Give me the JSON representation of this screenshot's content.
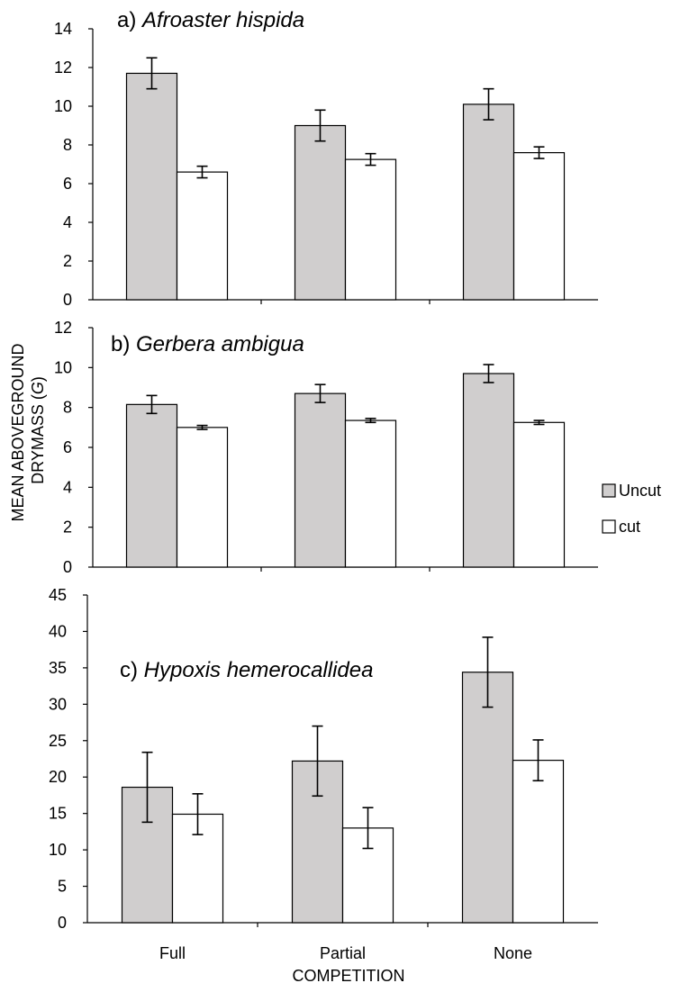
{
  "chart_data": {
    "type": "bar",
    "ylabel_line1": "MEAN ABOVEGROUND",
    "ylabel_line2_prefix": "DRYMASS (",
    "ylabel_line2_unit": "G",
    "ylabel_line2_suffix": ")",
    "xlabel": "COMPETITION",
    "categories": [
      "Full",
      "Partial",
      "None"
    ],
    "legend": {
      "placement": "right",
      "entries": [
        {
          "label": "Uncut",
          "color": "#d0cece"
        },
        {
          "label": "cut",
          "color": "#ffffff"
        }
      ]
    },
    "panels": [
      {
        "prefix": "a) ",
        "species": "Afroaster hispida",
        "ylim": [
          0,
          14
        ],
        "yticks": [
          "0",
          "2",
          "4",
          "6",
          "8",
          "10",
          "12",
          "14"
        ],
        "series": [
          {
            "name": "Uncut",
            "values": [
              11.7,
              9.0,
              10.1
            ],
            "errors": [
              0.8,
              0.8,
              0.8
            ]
          },
          {
            "name": "cut",
            "values": [
              6.6,
              7.25,
              7.6
            ],
            "errors": [
              0.3,
              0.3,
              0.3
            ]
          }
        ]
      },
      {
        "prefix": "b) ",
        "species": "Gerbera ambigua",
        "ylim": [
          0,
          12
        ],
        "yticks": [
          "0",
          "2",
          "4",
          "6",
          "8",
          "10",
          "12"
        ],
        "series": [
          {
            "name": "Uncut",
            "values": [
              8.15,
              8.7,
              9.7
            ],
            "errors": [
              0.45,
              0.45,
              0.45
            ]
          },
          {
            "name": "cut",
            "values": [
              7.0,
              7.35,
              7.25
            ],
            "errors": [
              0.1,
              0.1,
              0.1
            ]
          }
        ]
      },
      {
        "prefix": "c) ",
        "species": "Hypoxis hemerocallidea",
        "ylim": [
          0,
          45
        ],
        "yticks": [
          "0",
          "5",
          "10",
          "15",
          "20",
          "25",
          "30",
          "35",
          "40",
          "45"
        ],
        "series": [
          {
            "name": "Uncut",
            "values": [
              18.6,
              22.2,
              34.4
            ],
            "errors": [
              4.8,
              4.8,
              4.8
            ]
          },
          {
            "name": "cut",
            "values": [
              14.9,
              13.0,
              22.3
            ],
            "errors": [
              2.8,
              2.8,
              2.8
            ]
          }
        ]
      }
    ]
  }
}
